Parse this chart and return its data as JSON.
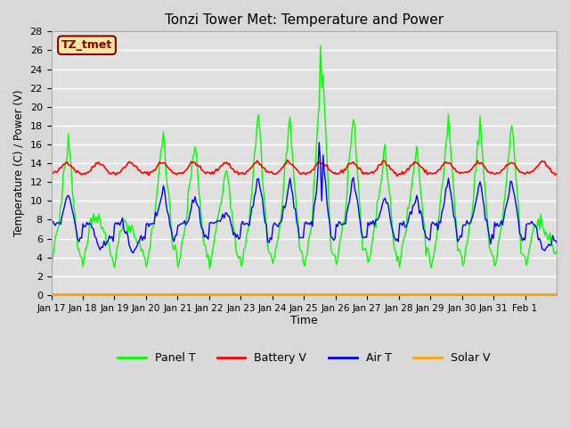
{
  "title": "Tonzi Tower Met: Temperature and Power",
  "xlabel": "Time",
  "ylabel": "Temperature (C) / Power (V)",
  "ylim": [
    0,
    28
  ],
  "yticks": [
    0,
    2,
    4,
    6,
    8,
    10,
    12,
    14,
    16,
    18,
    20,
    22,
    24,
    26,
    28
  ],
  "xtick_labels": [
    "Jan 17",
    "Jan 18",
    "Jan 19",
    "Jan 20",
    "Jan 21",
    "Jan 22",
    "Jan 23",
    "Jan 24",
    "Jan 25",
    "Jan 26",
    "Jan 27",
    "Jan 28",
    "Jan 29",
    "Jan 30",
    "Jan 31",
    "Feb 1"
  ],
  "label_box_text": "TZ_tmet",
  "label_box_facecolor": "#f5e6a0",
  "label_box_edgecolor": "#8b0000",
  "label_box_textcolor": "#8b0000",
  "bg_color": "#e0e0e0",
  "grid_color": "#ffffff",
  "series_colors": {
    "Panel T": "#00ff00",
    "Battery V": "#ff0000",
    "Air T": "#0000ff",
    "Solar V": "#ffa500"
  },
  "legend_order": [
    "Panel T",
    "Battery V",
    "Air T",
    "Solar V"
  ],
  "n_days": 16,
  "panel_peaks": [
    16.7,
    7.5,
    7.2,
    17.5,
    16.0,
    13.5,
    19.5,
    19.0,
    26.5,
    19.0,
    16.0,
    16.0,
    19.0,
    18.5,
    18.5,
    7.0
  ],
  "seed": 42
}
